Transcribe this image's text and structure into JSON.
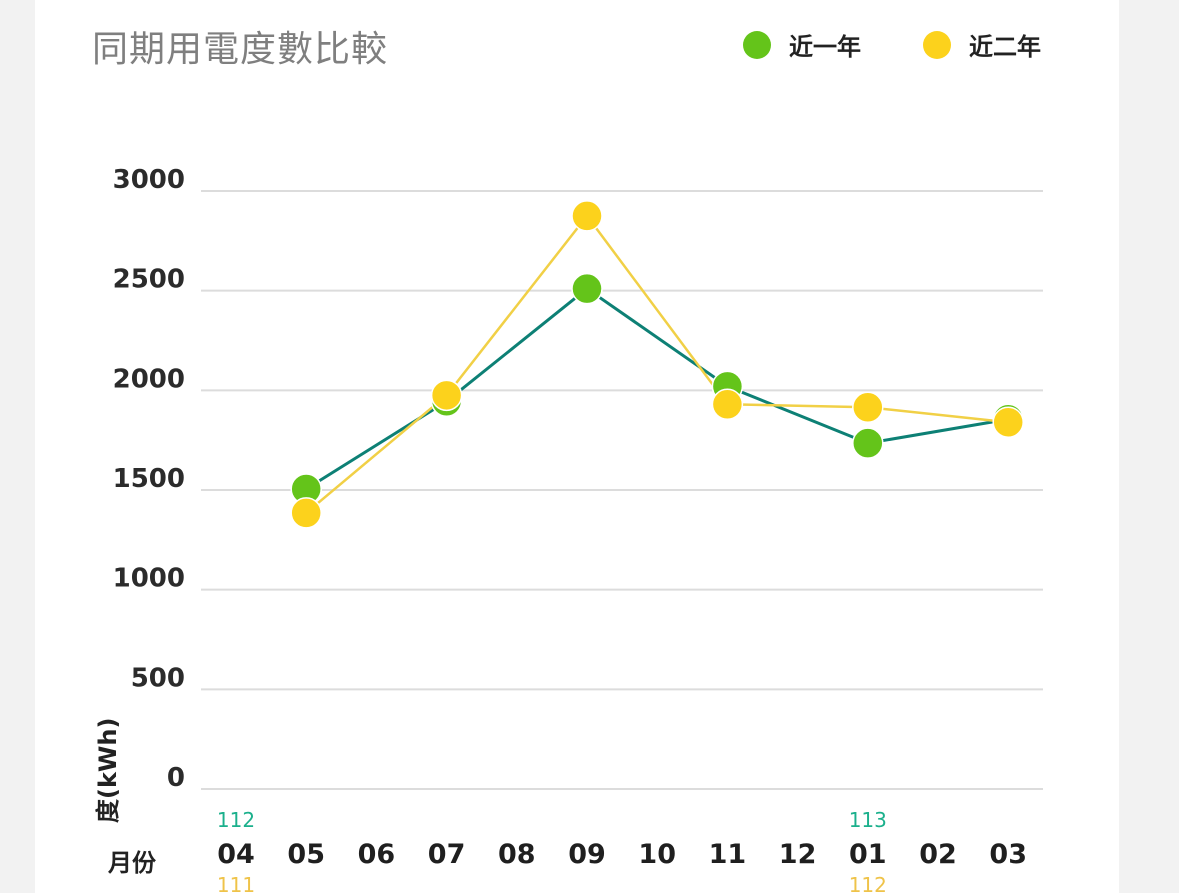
{
  "colors": {
    "grid": "#dcdcdc",
    "near_one_line": "#0d8075",
    "near_one_dot": "#64c41a",
    "near_two_line": "#f1d046",
    "near_two_dot": "#fcd21c",
    "year_current": "#1bb08c",
    "year_previous": "#efc349"
  },
  "chart_data": {
    "type": "line",
    "title": "同期用電度數比較",
    "ylabel": "度(kWh)",
    "xlabel": "月份",
    "ylim": [
      0,
      3000
    ],
    "yticks": [
      "3000",
      "2500",
      "2000",
      "1500",
      "1000",
      "500",
      "0"
    ],
    "grid": true,
    "legend": "top-right",
    "categories": [
      "04",
      "05",
      "06",
      "07",
      "08",
      "09",
      "10",
      "11",
      "12",
      "01",
      "02",
      "03"
    ],
    "year_markers": [
      {
        "category": "04",
        "current": "112",
        "previous": "111"
      },
      {
        "category": "01",
        "current": "113",
        "previous": "112"
      }
    ],
    "series": [
      {
        "name": "近一年",
        "values": [
          null,
          1505,
          null,
          1945,
          null,
          2510,
          null,
          2020,
          null,
          1735,
          null,
          1855
        ]
      },
      {
        "name": "近二年",
        "values": [
          null,
          1385,
          null,
          1975,
          null,
          2875,
          null,
          1930,
          null,
          1915,
          null,
          1840
        ]
      }
    ]
  }
}
